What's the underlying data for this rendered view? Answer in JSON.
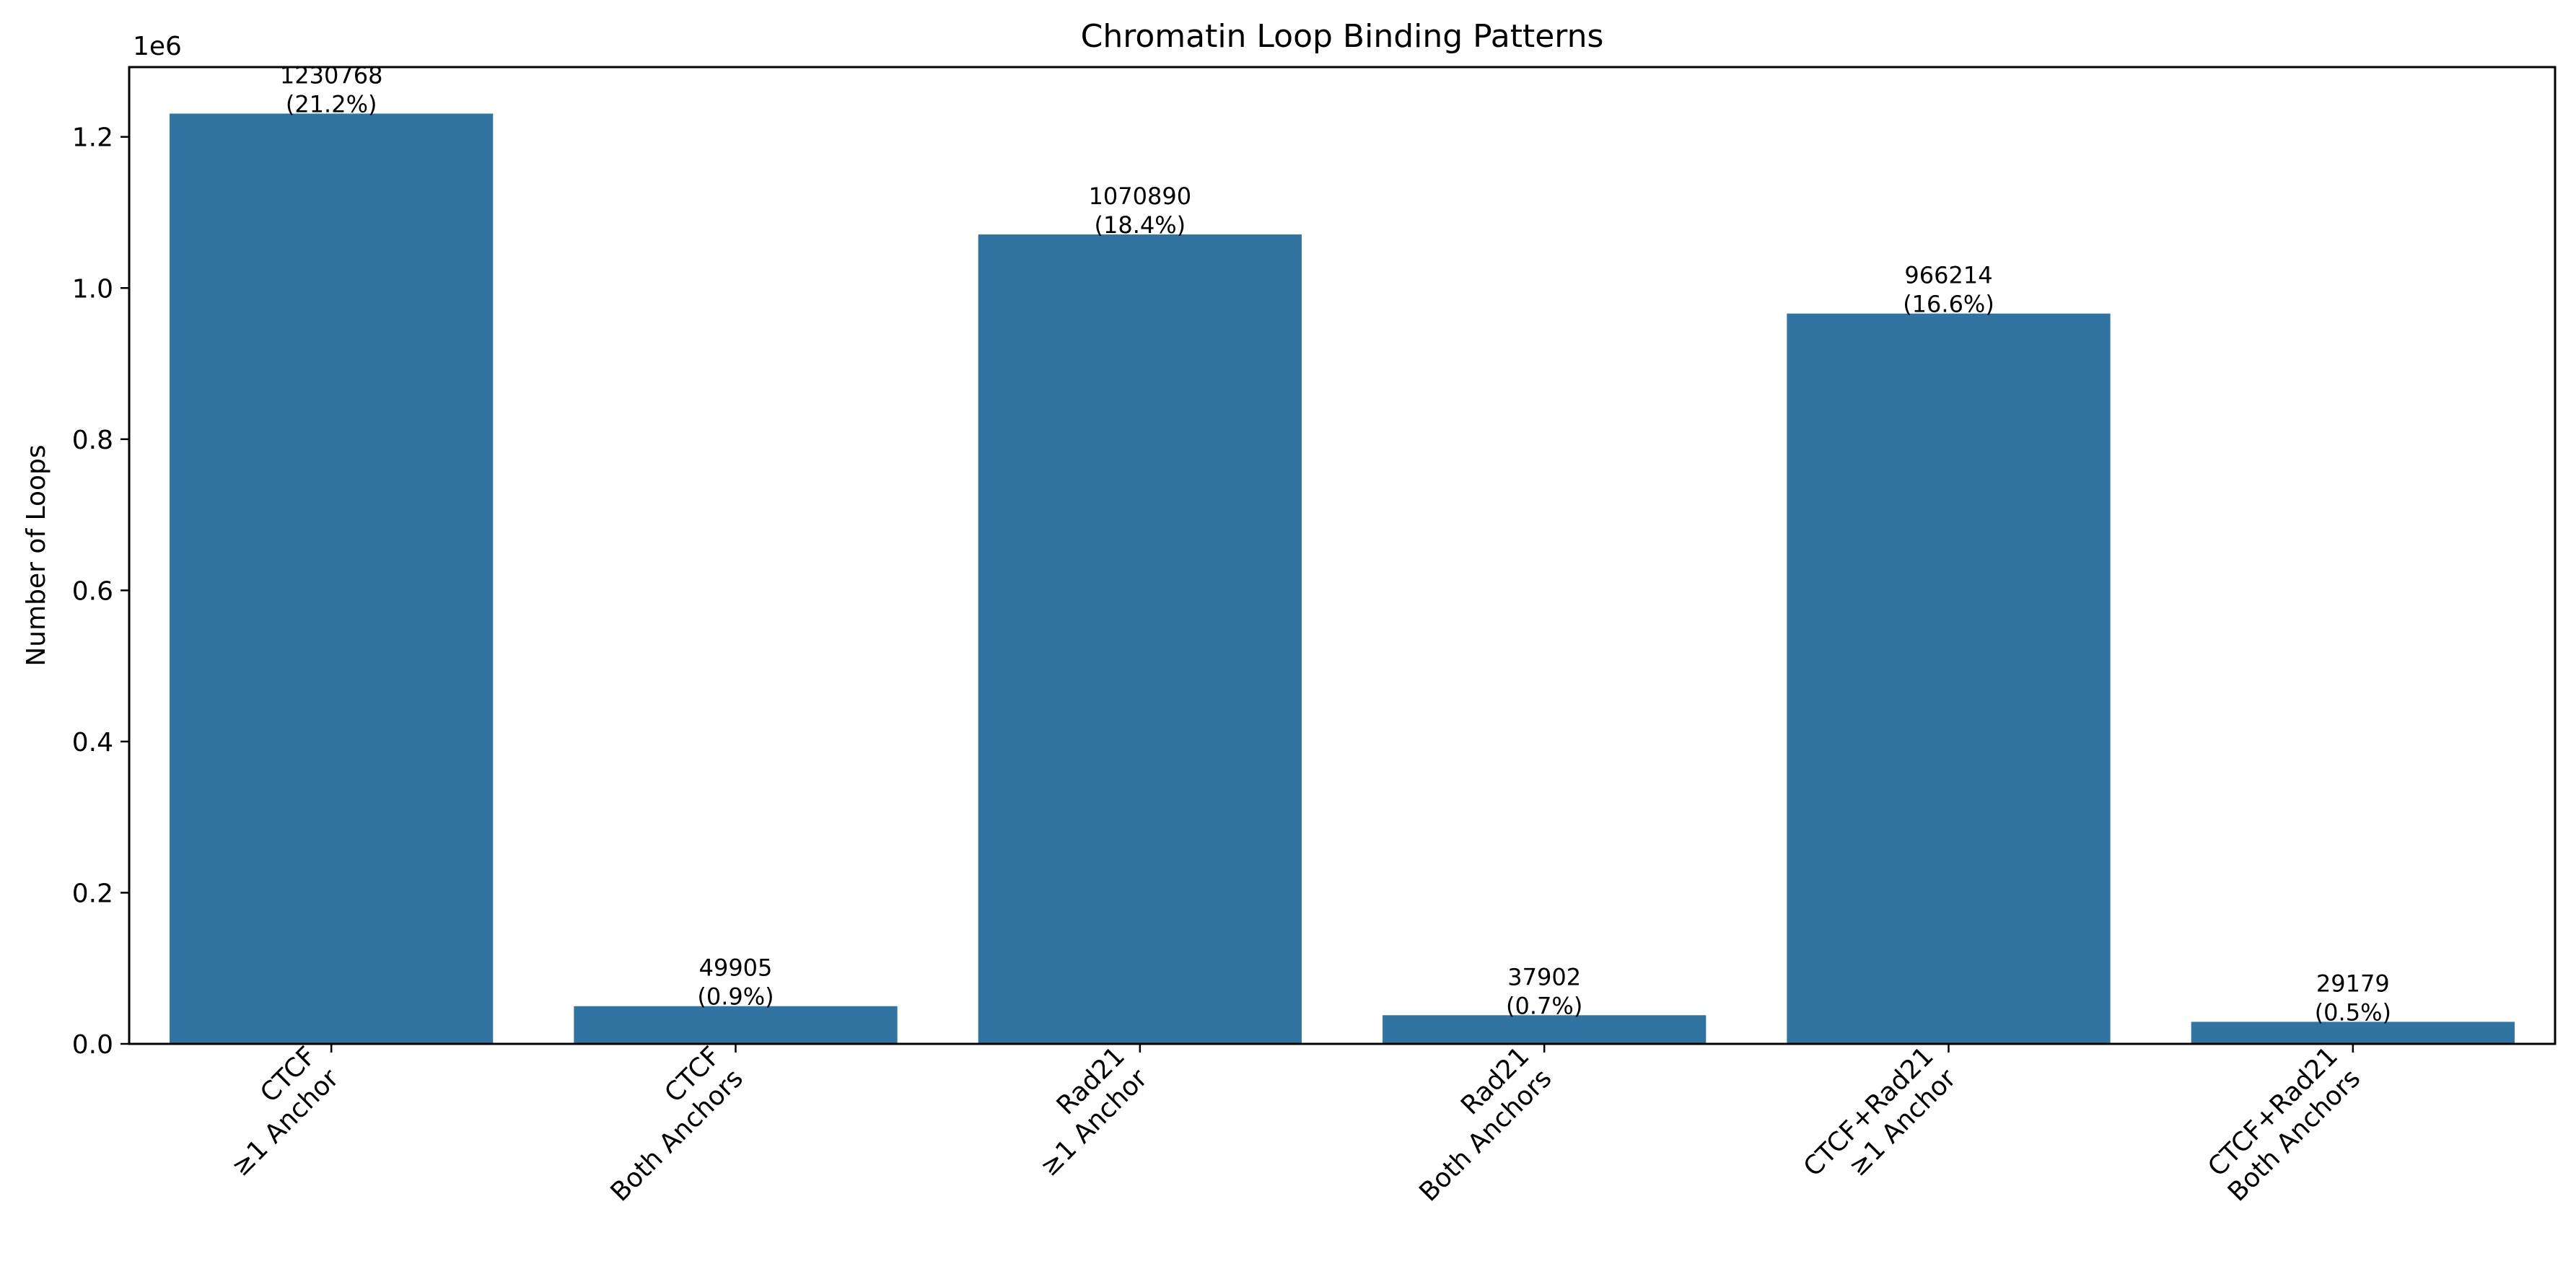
{
  "chart_data": {
    "type": "bar",
    "title": "Chromatin Loop Binding Patterns",
    "xlabel": "",
    "ylabel": "Number of Loops",
    "scale_label": "1e6",
    "categories": [
      [
        "CTCF",
        "≥1 Anchor"
      ],
      [
        "CTCF",
        "Both Anchors"
      ],
      [
        "Rad21",
        "≥1 Anchor"
      ],
      [
        "Rad21",
        "Both Anchors"
      ],
      [
        "CTCF+Rad21",
        "≥1 Anchor"
      ],
      [
        "CTCF+Rad21",
        "Both Anchors"
      ]
    ],
    "values": [
      1230768,
      49905,
      1070890,
      37902,
      966214,
      29179
    ],
    "value_labels": [
      "1230768",
      "49905",
      "1070890",
      "37902",
      "966214",
      "29179"
    ],
    "percent_labels": [
      "(21.2%)",
      "(0.9%)",
      "(18.4%)",
      "(0.7%)",
      "(16.6%)",
      "(0.5%)"
    ],
    "yticks": [
      0,
      0.2,
      0.4,
      0.6,
      0.8,
      1.0,
      1.2
    ],
    "ytick_labels": [
      "0.0",
      "0.2",
      "0.4",
      "0.6",
      "0.8",
      "1.0",
      "1.2"
    ],
    "ytick_multiplier": 1000000,
    "ylim": [
      0,
      1292306
    ],
    "grid": false,
    "legend": "none",
    "bar_color": "#3274a1"
  }
}
